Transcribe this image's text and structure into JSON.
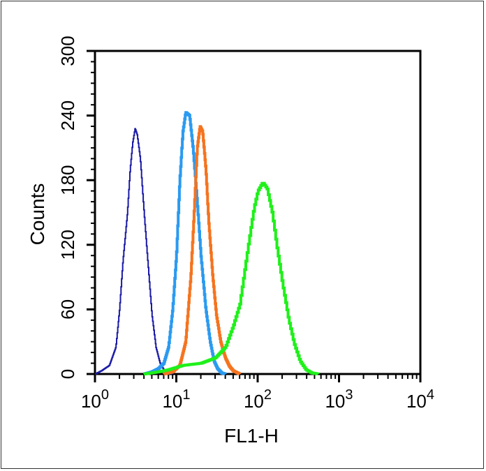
{
  "chart_data": {
    "type": "line",
    "xlabel": "FL1-H",
    "ylabel": "Counts",
    "xscale": "log",
    "xlim": [
      1,
      10000
    ],
    "ylim": [
      0,
      300
    ],
    "yticks": [
      0,
      60,
      120,
      180,
      240,
      300
    ],
    "xticks": [
      {
        "value": 1,
        "base": "10",
        "exp": "0"
      },
      {
        "value": 10,
        "base": "10",
        "exp": "1"
      },
      {
        "value": 100,
        "base": "10",
        "exp": "2"
      },
      {
        "value": 1000,
        "base": "10",
        "exp": "3"
      },
      {
        "value": 10000,
        "base": "10",
        "exp": "4"
      }
    ],
    "grid": false,
    "legend": "none",
    "series": [
      {
        "color": "#1a1aa6",
        "stroke": 2,
        "points": [
          [
            1,
            0
          ],
          [
            1.2,
            3
          ],
          [
            1.5,
            8
          ],
          [
            1.8,
            25
          ],
          [
            2.0,
            60
          ],
          [
            2.2,
            105
          ],
          [
            2.5,
            150
          ],
          [
            2.7,
            190
          ],
          [
            2.9,
            215
          ],
          [
            3.1,
            228
          ],
          [
            3.3,
            222
          ],
          [
            3.6,
            200
          ],
          [
            4.0,
            150
          ],
          [
            4.5,
            100
          ],
          [
            5.0,
            55
          ],
          [
            5.6,
            25
          ],
          [
            6.3,
            10
          ],
          [
            7.0,
            4
          ],
          [
            8.0,
            1
          ],
          [
            9.0,
            0
          ]
        ]
      },
      {
        "color": "#2b9af0",
        "stroke": 4,
        "points": [
          [
            4,
            0
          ],
          [
            5,
            2
          ],
          [
            6,
            5
          ],
          [
            7,
            10
          ],
          [
            8,
            25
          ],
          [
            9,
            60
          ],
          [
            10,
            110
          ],
          [
            11,
            180
          ],
          [
            12,
            225
          ],
          [
            13,
            243
          ],
          [
            14.5,
            240
          ],
          [
            16,
            210
          ],
          [
            18,
            160
          ],
          [
            20,
            110
          ],
          [
            23,
            60
          ],
          [
            26,
            30
          ],
          [
            29,
            12
          ],
          [
            32,
            5
          ],
          [
            36,
            1
          ],
          [
            40,
            0
          ]
        ]
      },
      {
        "color": "#f5731e",
        "stroke": 4,
        "points": [
          [
            7,
            0
          ],
          [
            9,
            2
          ],
          [
            11,
            8
          ],
          [
            13,
            30
          ],
          [
            15,
            90
          ],
          [
            16.5,
            150
          ],
          [
            18,
            210
          ],
          [
            19.5,
            230
          ],
          [
            21,
            225
          ],
          [
            23,
            190
          ],
          [
            25,
            140
          ],
          [
            28,
            90
          ],
          [
            31,
            55
          ],
          [
            35,
            30
          ],
          [
            40,
            15
          ],
          [
            45,
            7
          ],
          [
            50,
            3
          ],
          [
            60,
            0
          ]
        ]
      },
      {
        "color": "#1ff01a",
        "stroke": 4,
        "points": [
          [
            4,
            0
          ],
          [
            6,
            2
          ],
          [
            8,
            4
          ],
          [
            12,
            8
          ],
          [
            20,
            10
          ],
          [
            30,
            15
          ],
          [
            40,
            25
          ],
          [
            50,
            45
          ],
          [
            60,
            65
          ],
          [
            70,
            100
          ],
          [
            80,
            130
          ],
          [
            90,
            155
          ],
          [
            100,
            170
          ],
          [
            115,
            178
          ],
          [
            130,
            172
          ],
          [
            150,
            150
          ],
          [
            170,
            120
          ],
          [
            200,
            85
          ],
          [
            240,
            50
          ],
          [
            280,
            28
          ],
          [
            330,
            12
          ],
          [
            390,
            4
          ],
          [
            460,
            1
          ],
          [
            550,
            0
          ]
        ]
      }
    ]
  }
}
